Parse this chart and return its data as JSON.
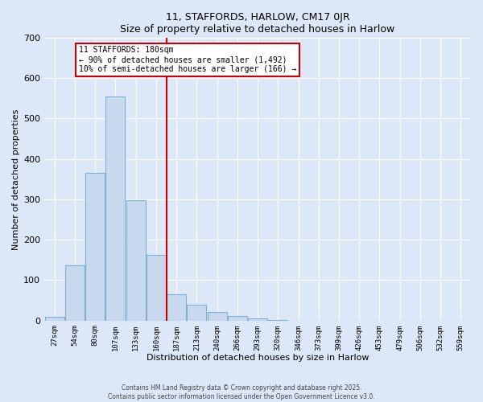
{
  "title": "11, STAFFORDS, HARLOW, CM17 0JR",
  "subtitle": "Size of property relative to detached houses in Harlow",
  "xlabel": "Distribution of detached houses by size in Harlow",
  "ylabel": "Number of detached properties",
  "bar_color": "#c8d9ee",
  "bar_edge_color": "#7bafd4",
  "background_color": "#dce8f8",
  "grid_color": "#ffffff",
  "categories": [
    "27sqm",
    "54sqm",
    "80sqm",
    "107sqm",
    "133sqm",
    "160sqm",
    "187sqm",
    "213sqm",
    "240sqm",
    "266sqm",
    "293sqm",
    "320sqm",
    "346sqm",
    "373sqm",
    "399sqm",
    "426sqm",
    "453sqm",
    "479sqm",
    "506sqm",
    "532sqm",
    "559sqm"
  ],
  "values": [
    10,
    137,
    365,
    555,
    298,
    162,
    65,
    40,
    22,
    12,
    5,
    2,
    0,
    0,
    0,
    0,
    0,
    0,
    0,
    0,
    0
  ],
  "ylim": [
    0,
    700
  ],
  "yticks": [
    0,
    100,
    200,
    300,
    400,
    500,
    600,
    700
  ],
  "vline_x_index": 6,
  "vline_color": "#cc0000",
  "annotation_title": "11 STAFFORDS: 180sqm",
  "annotation_line1": "← 90% of detached houses are smaller (1,492)",
  "annotation_line2": "10% of semi-detached houses are larger (166) →",
  "annotation_box_color": "#ffffff",
  "annotation_box_edge": "#cc0000",
  "footer_line1": "Contains HM Land Registry data © Crown copyright and database right 2025.",
  "footer_line2": "Contains public sector information licensed under the Open Government Licence v3.0."
}
